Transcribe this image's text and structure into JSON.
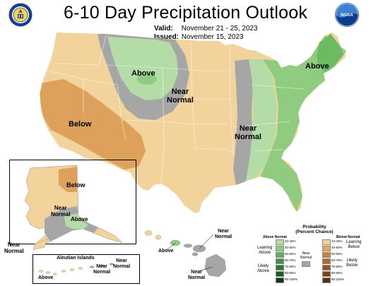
{
  "title": "6-10 Day Precipitation Outlook",
  "valid_label": "Valid:",
  "valid_value": "November 21 - 25, 2023",
  "issued_label": "Issued:",
  "issued_value": "November 15, 2023",
  "noaa_text": "NOAA",
  "map_labels": {
    "above_northwest": "Above",
    "near_normal_plains": "Near\nNormal",
    "below_southwest": "Below",
    "near_normal_mississippi": "Near\nNormal",
    "above_northeast": "Above"
  },
  "alaska_labels": {
    "below": "Below",
    "near_normal": "Near\nNormal",
    "above": "Above",
    "near_normal_sw": "Near\nNormal"
  },
  "aleutian_label": "Aleutian Islands",
  "aleutian_above": "Above",
  "aleutian_near_normal_1": "Near\nNormal",
  "aleutian_near_normal_2": "Near\nNormal",
  "hawaii_labels": {
    "near_normal_top": "Near\nNormal",
    "above": "Above",
    "near_normal_bottom": "Near\nNormal"
  },
  "legend": {
    "heading": "Probability\n(Percent Chance)",
    "above_header": "Above Normal",
    "below_header": "Below Normal",
    "near_label": "Near\nNormal",
    "leaning_above": "Leaning\nAbove",
    "likely_above": "Likely\nAbove",
    "leaning_below": "Leaning\nBelow",
    "likely_below": "Likely\nBelow",
    "ranges": [
      "33-40%",
      "40-50%",
      "50-60%",
      "60-70%",
      "70-80%",
      "80-90%",
      "90-100%"
    ],
    "above_colors": [
      "#b3dca6",
      "#8fcc80",
      "#5fb25a",
      "#3f9444",
      "#2b7a35",
      "#1d5c27",
      "#0f3b16"
    ],
    "below_colors": [
      "#f2d39b",
      "#e2a85d",
      "#cc8438",
      "#b06a2c",
      "#935423",
      "#7a431c",
      "#5a2f12"
    ],
    "near_color": "#a6a6a6"
  },
  "colors": {
    "below_33_40": "#f2d39b",
    "below_40_50": "#dda15b",
    "above_33_40": "#b3dca6",
    "above_40_50": "#8fcc80",
    "above_50_60": "#6dba62",
    "near_normal": "#a6a6a6"
  }
}
